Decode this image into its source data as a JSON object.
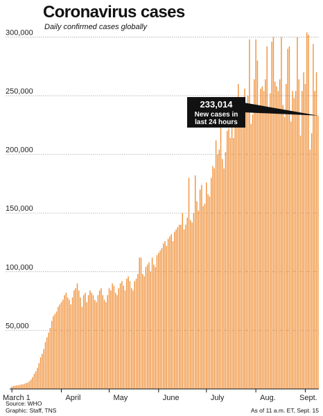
{
  "header": {
    "title": "Coronavirus cases",
    "subtitle": "Daily confirmed cases globally"
  },
  "footer": {
    "source": "Source: WHO",
    "credit": "Graphic: Staff, TNS",
    "timestamp": "As of 11 a.m. ET, Sept. 15"
  },
  "colors": {
    "bar": "#f0913a",
    "callout_bg": "#111111",
    "gridline": "#aaaaaa"
  },
  "chart_data": {
    "type": "bar",
    "title": "Coronavirus cases",
    "subtitle": "Daily confirmed cases globally",
    "xlabel": "",
    "ylabel": "",
    "ylim": [
      0,
      305000
    ],
    "yticks": [
      50000,
      100000,
      150000,
      200000,
      250000,
      300000
    ],
    "ytick_labels": [
      "50,000",
      "100,000",
      "150,000",
      "200,000",
      "250,000",
      "300,000"
    ],
    "xtick_labels": [
      {
        "label": "March 1",
        "day": 0
      },
      {
        "label": "April",
        "day": 31
      },
      {
        "label": "May",
        "day": 61
      },
      {
        "label": "June",
        "day": 92
      },
      {
        "label": "July",
        "day": 122
      },
      {
        "label": "Aug.",
        "day": 153
      },
      {
        "label": "Sept.",
        "day": 184
      }
    ],
    "grid": true,
    "annotation": {
      "value": "233,014",
      "text": "New cases in\nlast 24 hours"
    },
    "series": [
      {
        "values": [
          2000,
          2500,
          2800,
          3000,
          3200,
          3500,
          3800,
          4000,
          4500,
          5000,
          5500,
          6500,
          8000,
          10000,
          13000,
          15000,
          18000,
          22000,
          27000,
          30000,
          34000,
          40000,
          44000,
          48000,
          52000,
          58000,
          62000,
          64000,
          66000,
          70000,
          72000,
          74000,
          76000,
          80000,
          82000,
          78000,
          76000,
          72000,
          78000,
          84000,
          86000,
          90000,
          84000,
          78000,
          70000,
          80000,
          82000,
          74000,
          80000,
          84000,
          82000,
          80000,
          76000,
          74000,
          80000,
          84000,
          86000,
          80000,
          76000,
          74000,
          80000,
          86000,
          84000,
          90000,
          88000,
          82000,
          80000,
          86000,
          90000,
          92000,
          88000,
          84000,
          94000,
          96000,
          92000,
          86000,
          84000,
          92000,
          94000,
          98000,
          112000,
          112000,
          98000,
          96000,
          104000,
          106000,
          108000,
          100000,
          112000,
          106000,
          104000,
          114000,
          116000,
          118000,
          120000,
          124000,
          126000,
          122000,
          128000,
          130000,
          132000,
          126000,
          134000,
          136000,
          138000,
          140000,
          140000,
          150000,
          136000,
          140000,
          146000,
          180000,
          144000,
          142000,
          150000,
          182000,
          160000,
          152000,
          170000,
          174000,
          156000,
          158000,
          176000,
          166000,
          164000,
          180000,
          190000,
          188000,
          212000,
          200000,
          204000,
          226000,
          196000,
          188000,
          202000,
          220000,
          222000,
          214000,
          228000,
          214000,
          226000,
          236000,
          260000,
          232000,
          242000,
          230000,
          256000,
          240000,
          250000,
          298000,
          226000,
          234000,
          264000,
          298000,
          280000,
          236000,
          256000,
          258000,
          254000,
          264000,
          292000,
          236000,
          252000,
          296000,
          300000,
          262000,
          258000,
          254000,
          264000,
          300000,
          242000,
          232000,
          260000,
          290000,
          292000,
          228000,
          254000,
          248000,
          254000,
          300000,
          264000,
          216000,
          254000,
          270000,
          260000,
          304000,
          302000,
          204000,
          218000,
          294000,
          254000,
          270000,
          233014
        ]
      }
    ]
  }
}
